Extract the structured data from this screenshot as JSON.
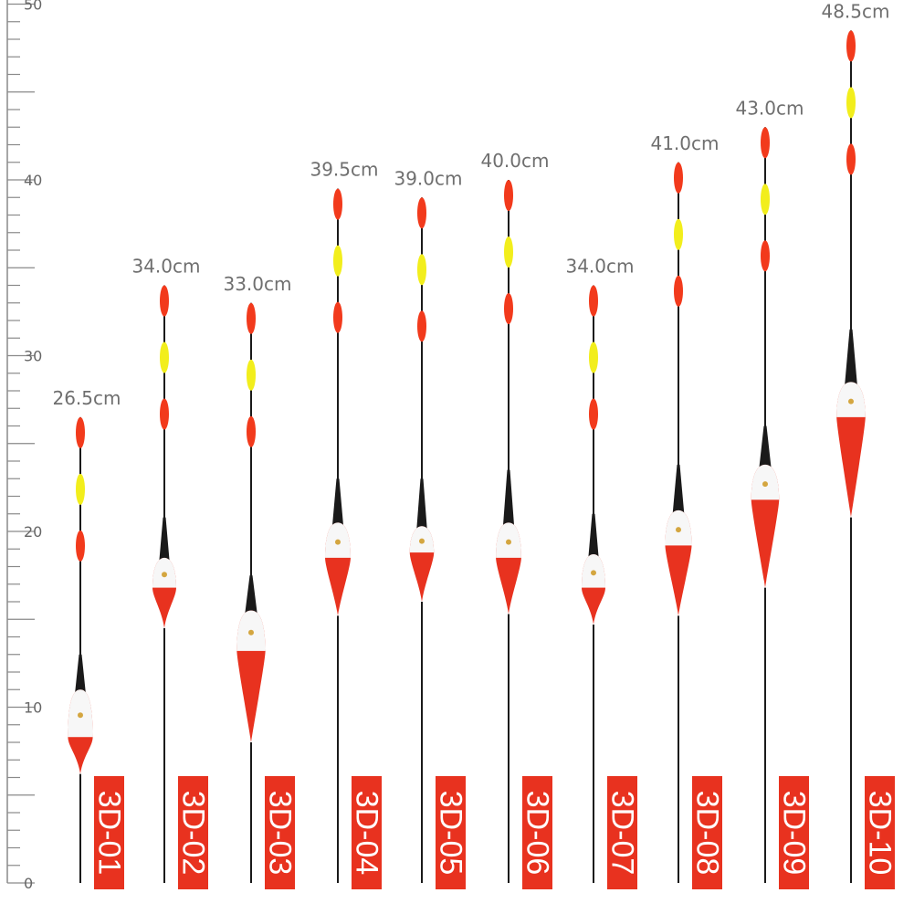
{
  "ruler": {
    "unit": "cm",
    "min": 0,
    "max": 50,
    "labels": [
      {
        "value": 0,
        "text": "0"
      },
      {
        "value": 10,
        "text": "10"
      },
      {
        "value": 20,
        "text": "20"
      },
      {
        "value": 30,
        "text": "30"
      },
      {
        "value": 40,
        "text": "40"
      },
      {
        "value": 50,
        "text": "50"
      }
    ]
  },
  "colors": {
    "body_red": "#e8321f",
    "tip_red": "#f23a1c",
    "tip_yellow": "#f2ee1c",
    "band_white": "#f7f7f7",
    "stem": "#1a1a1a",
    "label_box": "#e8321f",
    "label_text": "#ffffff",
    "length_text": "#6f6f6f",
    "ruler": "#8a8a8a"
  },
  "floats": [
    {
      "model": "3D-01",
      "length_text": "26.5cm",
      "length_cm": 26.5
    },
    {
      "model": "3D-02",
      "length_text": "34.0cm",
      "length_cm": 34.0
    },
    {
      "model": "3D-03",
      "length_text": "33.0cm",
      "length_cm": 33.0
    },
    {
      "model": "3D-04",
      "length_text": "39.5cm",
      "length_cm": 39.5
    },
    {
      "model": "3D-05",
      "length_text": "39.0cm",
      "length_cm": 39.0
    },
    {
      "model": "3D-06",
      "length_text": "40.0cm",
      "length_cm": 40.0
    },
    {
      "model": "3D-07",
      "length_text": "34.0cm",
      "length_cm": 34.0
    },
    {
      "model": "3D-08",
      "length_text": "41.0cm",
      "length_cm": 41.0
    },
    {
      "model": "3D-09",
      "length_text": "43.0cm",
      "length_cm": 43.0
    },
    {
      "model": "3D-10",
      "length_text": "48.5cm",
      "length_cm": 48.5
    }
  ]
}
